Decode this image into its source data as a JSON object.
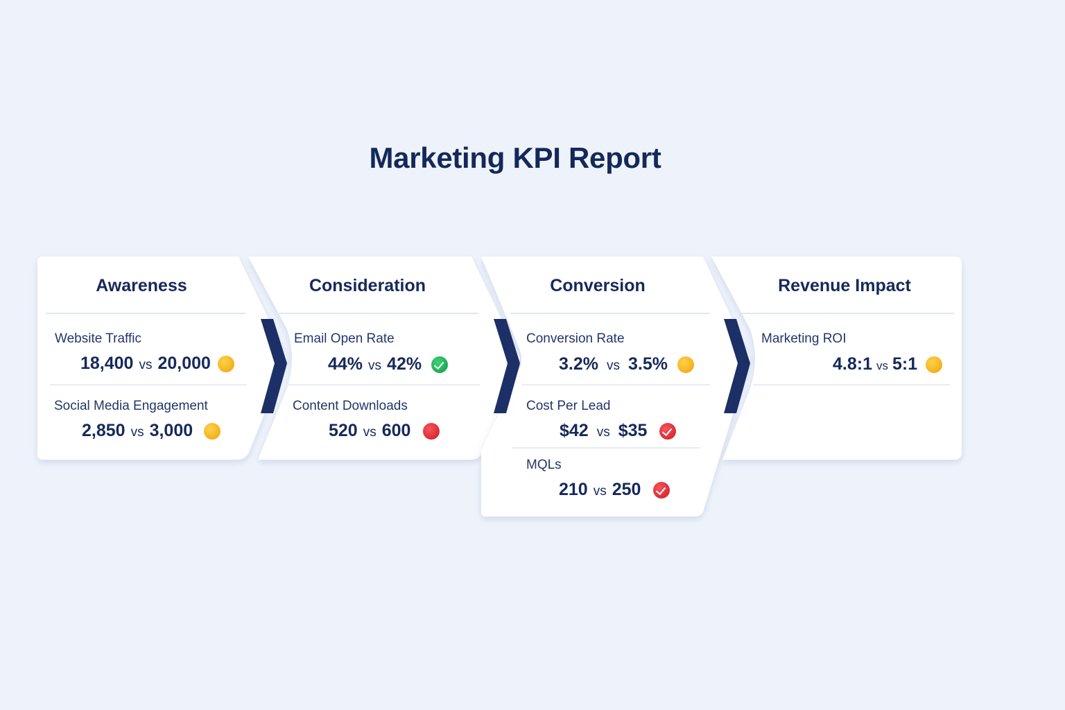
{
  "title": "Marketing KPI Report",
  "colors": {
    "background": "#eef3fb",
    "card": "#ffffff",
    "chevron": "#1c2f66",
    "text": "#16295b",
    "on_track": "#f4b01c",
    "met": "#1faa56",
    "missed": "#dc2b33"
  },
  "stages": [
    {
      "name": "Awareness",
      "metrics": [
        {
          "label": "Website Traffic",
          "actual": "18,400",
          "vs": "vs",
          "target": "20,000",
          "status": "yellow",
          "status_icon": "yellow-circle-icon"
        },
        {
          "label": "Social Media Engagement",
          "actual": "2,850",
          "vs": "vs",
          "target": "3,000",
          "status": "yellow",
          "status_icon": "yellow-circle-icon"
        }
      ]
    },
    {
      "name": "Consideration",
      "metrics": [
        {
          "label": "Email Open Rate",
          "actual": "44%",
          "vs": "vs",
          "target": "42%",
          "status": "green-check",
          "status_icon": "green-check-icon"
        },
        {
          "label": "Content Downloads",
          "actual": "520",
          "vs": "vs",
          "target": "600",
          "status": "red",
          "status_icon": "red-circle-icon"
        }
      ]
    },
    {
      "name": "Conversion",
      "metrics": [
        {
          "label": "Conversion Rate",
          "actual": "3.2%",
          "vs": "vs",
          "target": "3.5%",
          "status": "yellow",
          "status_icon": "yellow-circle-icon"
        },
        {
          "label": "Cost Per Lead",
          "actual": "$42",
          "vs": "vs",
          "target": "$35",
          "status": "red-check",
          "status_icon": "red-check-icon"
        },
        {
          "label": "MQLs",
          "actual": "210",
          "vs": "vs",
          "target": "250",
          "status": "red-check",
          "status_icon": "red-check-icon"
        }
      ]
    },
    {
      "name": "Revenue Impact",
      "metrics": [
        {
          "label": "Marketing ROI",
          "actual": "4.8:1",
          "vs": "vs",
          "target": "5:1",
          "status": "yellow",
          "status_icon": "yellow-circle-icon"
        }
      ]
    }
  ]
}
